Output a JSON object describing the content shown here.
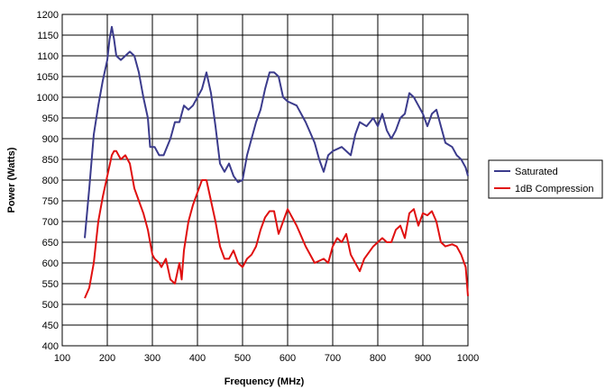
{
  "chart_data": {
    "type": "line",
    "title": "",
    "xlabel": "Frequency (MHz)",
    "ylabel": "Power (Watts)",
    "xlim": [
      100,
      1000
    ],
    "ylim": [
      400,
      1200
    ],
    "x_ticks": [
      100,
      200,
      300,
      400,
      500,
      600,
      700,
      800,
      900,
      1000
    ],
    "y_ticks": [
      400,
      450,
      500,
      550,
      600,
      650,
      700,
      750,
      800,
      850,
      900,
      950,
      1000,
      1050,
      1100,
      1150,
      1200
    ],
    "grid": true,
    "legend_position": "right",
    "series": [
      {
        "name": "Saturated",
        "color": "#3b3b8c",
        "points": [
          [
            150,
            660
          ],
          [
            160,
            780
          ],
          [
            170,
            910
          ],
          [
            180,
            980
          ],
          [
            190,
            1040
          ],
          [
            200,
            1090
          ],
          [
            205,
            1140
          ],
          [
            210,
            1170
          ],
          [
            215,
            1140
          ],
          [
            220,
            1100
          ],
          [
            230,
            1090
          ],
          [
            240,
            1100
          ],
          [
            250,
            1110
          ],
          [
            260,
            1100
          ],
          [
            270,
            1060
          ],
          [
            280,
            1000
          ],
          [
            290,
            950
          ],
          [
            295,
            880
          ],
          [
            305,
            880
          ],
          [
            315,
            860
          ],
          [
            325,
            860
          ],
          [
            340,
            900
          ],
          [
            350,
            940
          ],
          [
            360,
            940
          ],
          [
            370,
            980
          ],
          [
            380,
            970
          ],
          [
            390,
            980
          ],
          [
            400,
            1000
          ],
          [
            410,
            1020
          ],
          [
            420,
            1060
          ],
          [
            430,
            1010
          ],
          [
            440,
            930
          ],
          [
            450,
            840
          ],
          [
            460,
            820
          ],
          [
            470,
            840
          ],
          [
            480,
            810
          ],
          [
            490,
            795
          ],
          [
            500,
            800
          ],
          [
            510,
            860
          ],
          [
            520,
            900
          ],
          [
            530,
            940
          ],
          [
            540,
            970
          ],
          [
            550,
            1020
          ],
          [
            560,
            1060
          ],
          [
            570,
            1060
          ],
          [
            580,
            1050
          ],
          [
            590,
            1000
          ],
          [
            600,
            990
          ],
          [
            620,
            980
          ],
          [
            640,
            940
          ],
          [
            660,
            890
          ],
          [
            670,
            850
          ],
          [
            680,
            820
          ],
          [
            690,
            860
          ],
          [
            700,
            870
          ],
          [
            720,
            880
          ],
          [
            740,
            860
          ],
          [
            750,
            910
          ],
          [
            760,
            940
          ],
          [
            775,
            930
          ],
          [
            790,
            950
          ],
          [
            800,
            930
          ],
          [
            810,
            960
          ],
          [
            820,
            920
          ],
          [
            830,
            900
          ],
          [
            840,
            920
          ],
          [
            850,
            950
          ],
          [
            860,
            960
          ],
          [
            870,
            1010
          ],
          [
            880,
            1000
          ],
          [
            890,
            980
          ],
          [
            900,
            960
          ],
          [
            910,
            930
          ],
          [
            920,
            960
          ],
          [
            930,
            970
          ],
          [
            940,
            930
          ],
          [
            950,
            890
          ],
          [
            965,
            880
          ],
          [
            975,
            860
          ],
          [
            985,
            850
          ],
          [
            995,
            830
          ],
          [
            1000,
            810
          ]
        ]
      },
      {
        "name": "1dB Compression",
        "color": "#e01010",
        "points": [
          [
            150,
            515
          ],
          [
            160,
            540
          ],
          [
            170,
            600
          ],
          [
            180,
            700
          ],
          [
            190,
            760
          ],
          [
            200,
            810
          ],
          [
            210,
            860
          ],
          [
            215,
            870
          ],
          [
            220,
            870
          ],
          [
            230,
            850
          ],
          [
            240,
            860
          ],
          [
            250,
            840
          ],
          [
            260,
            780
          ],
          [
            270,
            750
          ],
          [
            280,
            720
          ],
          [
            290,
            680
          ],
          [
            300,
            620
          ],
          [
            305,
            610
          ],
          [
            315,
            600
          ],
          [
            320,
            590
          ],
          [
            330,
            610
          ],
          [
            340,
            560
          ],
          [
            350,
            550
          ],
          [
            360,
            600
          ],
          [
            365,
            560
          ],
          [
            370,
            630
          ],
          [
            380,
            700
          ],
          [
            390,
            740
          ],
          [
            400,
            770
          ],
          [
            410,
            800
          ],
          [
            420,
            800
          ],
          [
            430,
            750
          ],
          [
            440,
            700
          ],
          [
            450,
            640
          ],
          [
            460,
            610
          ],
          [
            470,
            610
          ],
          [
            480,
            630
          ],
          [
            490,
            600
          ],
          [
            500,
            590
          ],
          [
            510,
            610
          ],
          [
            520,
            620
          ],
          [
            530,
            640
          ],
          [
            540,
            680
          ],
          [
            550,
            710
          ],
          [
            560,
            725
          ],
          [
            570,
            725
          ],
          [
            580,
            670
          ],
          [
            590,
            700
          ],
          [
            600,
            730
          ],
          [
            620,
            690
          ],
          [
            640,
            640
          ],
          [
            660,
            600
          ],
          [
            680,
            610
          ],
          [
            690,
            600
          ],
          [
            700,
            640
          ],
          [
            710,
            660
          ],
          [
            720,
            650
          ],
          [
            730,
            670
          ],
          [
            740,
            620
          ],
          [
            750,
            600
          ],
          [
            760,
            580
          ],
          [
            770,
            610
          ],
          [
            790,
            640
          ],
          [
            800,
            650
          ],
          [
            810,
            660
          ],
          [
            820,
            650
          ],
          [
            830,
            650
          ],
          [
            840,
            680
          ],
          [
            850,
            690
          ],
          [
            860,
            660
          ],
          [
            870,
            720
          ],
          [
            880,
            730
          ],
          [
            890,
            690
          ],
          [
            900,
            720
          ],
          [
            910,
            715
          ],
          [
            920,
            725
          ],
          [
            930,
            700
          ],
          [
            940,
            650
          ],
          [
            950,
            640
          ],
          [
            965,
            645
          ],
          [
            975,
            640
          ],
          [
            985,
            620
          ],
          [
            995,
            590
          ],
          [
            1000,
            520
          ]
        ]
      }
    ]
  }
}
